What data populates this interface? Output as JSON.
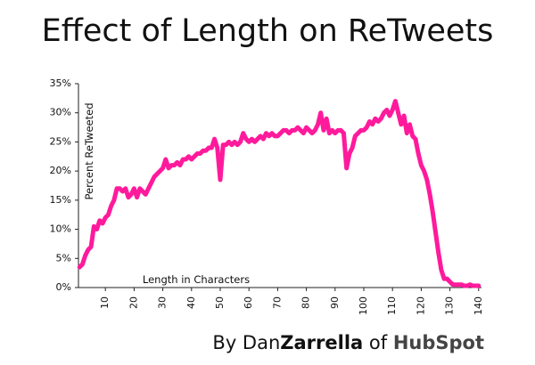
{
  "chart_data": {
    "type": "line",
    "title": "Effect of Length on ReTweets",
    "ylabel": "Percent ReTweeted",
    "xlabel": "Length in Characters",
    "footer": [
      "By Dan",
      "Zarrella",
      "of",
      "HubSpot"
    ],
    "xlim": [
      0,
      141
    ],
    "ylim": [
      0,
      35
    ],
    "xticks": [
      10,
      20,
      30,
      40,
      50,
      60,
      70,
      80,
      90,
      100,
      110,
      120,
      130,
      140
    ],
    "yticks": [
      {
        "value": 0,
        "label": "0%"
      },
      {
        "value": 5,
        "label": "5%"
      },
      {
        "value": 10,
        "label": "10%"
      },
      {
        "value": 15,
        "label": "15%"
      },
      {
        "value": 20,
        "label": "20%"
      },
      {
        "value": 25,
        "label": "25%"
      },
      {
        "value": 30,
        "label": "30%"
      },
      {
        "value": 35,
        "label": "35%"
      }
    ],
    "x": [
      1,
      2,
      3,
      4,
      5,
      6,
      7,
      8,
      9,
      10,
      11,
      12,
      13,
      14,
      15,
      16,
      17,
      18,
      19,
      20,
      21,
      22,
      23,
      24,
      25,
      26,
      27,
      28,
      29,
      30,
      31,
      32,
      33,
      34,
      35,
      36,
      37,
      38,
      39,
      40,
      41,
      42,
      43,
      44,
      45,
      46,
      47,
      48,
      49,
      50,
      51,
      52,
      53,
      54,
      55,
      56,
      57,
      58,
      59,
      60,
      61,
      62,
      63,
      64,
      65,
      66,
      67,
      68,
      69,
      70,
      71,
      72,
      73,
      74,
      75,
      76,
      77,
      78,
      79,
      80,
      81,
      82,
      83,
      84,
      85,
      86,
      87,
      88,
      89,
      90,
      91,
      92,
      93,
      94,
      95,
      96,
      97,
      98,
      99,
      100,
      101,
      102,
      103,
      104,
      105,
      106,
      107,
      108,
      109,
      110,
      111,
      112,
      113,
      114,
      115,
      116,
      117,
      118,
      119,
      120,
      121,
      122,
      123,
      124,
      125,
      126,
      127,
      128,
      129,
      130,
      131,
      132,
      133,
      134,
      135,
      136,
      137,
      138,
      139,
      140
    ],
    "series": [
      {
        "color": "#ff1a9c",
        "values": [
          3.5,
          4,
          5.5,
          6.5,
          7,
          10.5,
          10,
          11.5,
          11,
          12,
          12.5,
          14,
          15,
          17,
          17,
          16.5,
          17,
          15.5,
          16,
          17,
          15.5,
          17,
          16.5,
          16,
          17,
          18,
          19,
          19.5,
          20,
          20.5,
          22,
          20.5,
          21,
          21,
          21.5,
          21,
          22,
          22,
          22.5,
          22,
          22.5,
          23,
          23,
          23.5,
          23.5,
          24,
          24,
          25.5,
          24,
          18.5,
          24.5,
          24.5,
          25,
          24.5,
          25,
          24.5,
          25,
          26.5,
          25.5,
          25,
          25.5,
          25,
          25.5,
          26,
          25.5,
          26.5,
          26,
          26.5,
          26,
          26,
          26.5,
          27,
          27,
          26.5,
          27,
          27,
          27.5,
          27,
          26.5,
          27.5,
          27,
          26.5,
          27,
          28,
          30,
          27,
          29,
          26.5,
          27,
          26.5,
          27,
          27,
          26.5,
          20.5,
          23,
          24,
          26,
          26.5,
          27,
          27,
          27.5,
          28.5,
          28,
          29,
          28.5,
          29,
          30,
          30.5,
          29.5,
          30.5,
          32,
          30,
          28,
          29.5,
          26.5,
          28,
          26,
          25.5,
          23,
          21,
          20,
          18.5,
          16,
          13,
          9.5,
          6,
          3,
          1.5,
          1.5,
          1,
          0.5,
          0.5,
          0.5,
          0.5,
          0.3,
          0.3,
          0.5,
          0.3,
          0.3,
          0.3
        ]
      }
    ]
  }
}
